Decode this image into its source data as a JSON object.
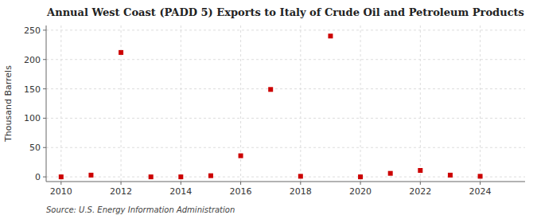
{
  "chart_data": {
    "type": "scatter",
    "title": "Annual West Coast (PADD 5) Exports to Italy of Crude Oil and Petroleum Products",
    "ylabel": "Thousand Barrels",
    "annotations": [
      "Source: U.S. Energy Information Administration"
    ],
    "x": [
      2010,
      2011,
      2012,
      2013,
      2014,
      2015,
      2016,
      2017,
      2018,
      2019,
      2020,
      2021,
      2022,
      2023,
      2024
    ],
    "values": [
      0,
      3,
      212,
      0,
      0,
      2,
      36,
      149,
      1,
      240,
      0,
      6,
      11,
      3,
      1
    ],
    "color": "#cc0000",
    "marker": "square",
    "xlim": [
      2009.5,
      2025.5
    ],
    "ylim": [
      -8,
      258
    ],
    "xticks": [
      2010,
      2012,
      2014,
      2016,
      2018,
      2020,
      2022,
      2024
    ],
    "yticks": [
      0,
      50,
      100,
      150,
      200,
      250
    ],
    "grid": true
  }
}
